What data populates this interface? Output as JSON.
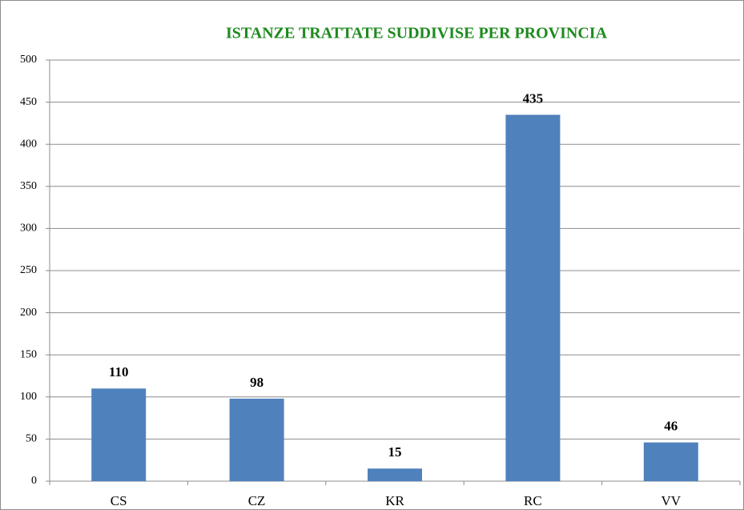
{
  "chart_data": {
    "type": "bar",
    "title": "ISTANZE TRATTATE SUDDIVISE PER PROVINCIA",
    "categories": [
      "CS",
      "CZ",
      "KR",
      "RC",
      "VV"
    ],
    "values": [
      110,
      98,
      15,
      435,
      46
    ],
    "color": "#4f81bd",
    "ylim": [
      0,
      500
    ],
    "yticks": [
      0,
      50,
      100,
      150,
      200,
      250,
      300,
      350,
      400,
      450,
      500
    ],
    "grid": true
  }
}
